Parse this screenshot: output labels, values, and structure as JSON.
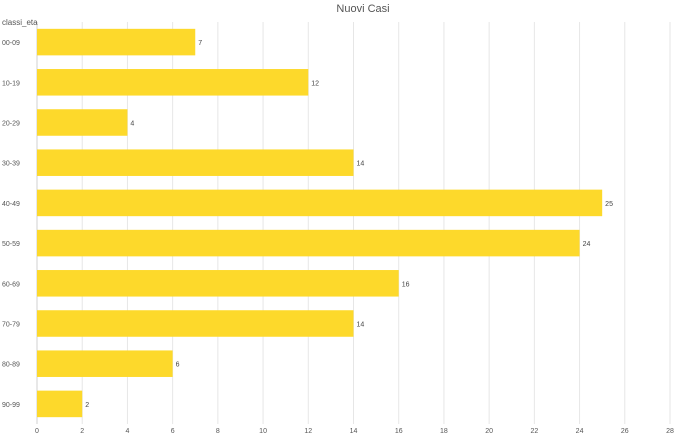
{
  "chart_data": {
    "type": "bar",
    "orientation": "horizontal",
    "title": "Nuovi Casi",
    "ylabel": "classi_eta",
    "xlabel": "",
    "categories": [
      "00-09",
      "10-19",
      "20-29",
      "30-39",
      "40-49",
      "50-59",
      "60-69",
      "70-79",
      "80-89",
      "90-99"
    ],
    "values": [
      7,
      12,
      4,
      14,
      25,
      24,
      16,
      14,
      6,
      2
    ],
    "xlim": [
      0,
      28
    ],
    "xticks": [
      0,
      2,
      4,
      6,
      8,
      10,
      12,
      14,
      16,
      18,
      20,
      22,
      24,
      26,
      28
    ],
    "grid": true,
    "bar_color": "#fdd92b",
    "data_labels": true
  }
}
